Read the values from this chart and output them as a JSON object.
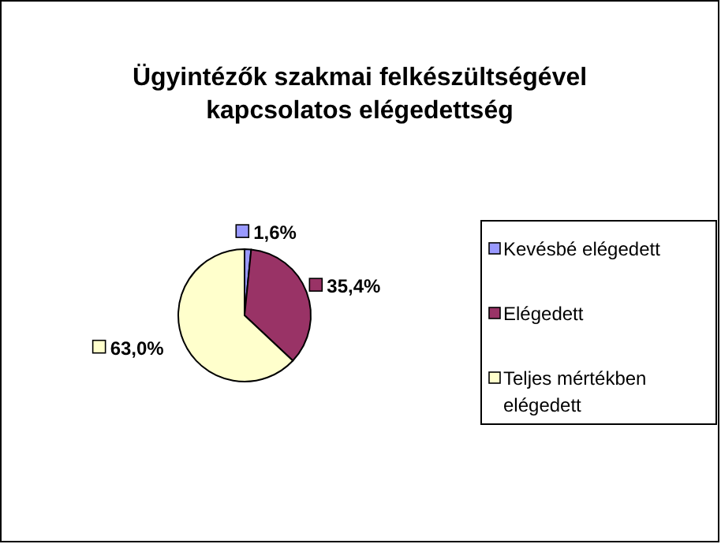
{
  "chart_data": {
    "type": "pie",
    "title": "Ügyintézők szakmai felkészültségével kapcsolatos elégedettség",
    "categories": [
      "Kevésbé elégedett",
      "Elégedett",
      "Teljes mértékben elégedett"
    ],
    "values": [
      1.6,
      35.4,
      63.0
    ],
    "colors": [
      "#9999ff",
      "#993366",
      "#ffffcc"
    ],
    "value_labels": [
      "1,6%",
      "35,4%",
      "63,0%"
    ],
    "legend": "right"
  }
}
